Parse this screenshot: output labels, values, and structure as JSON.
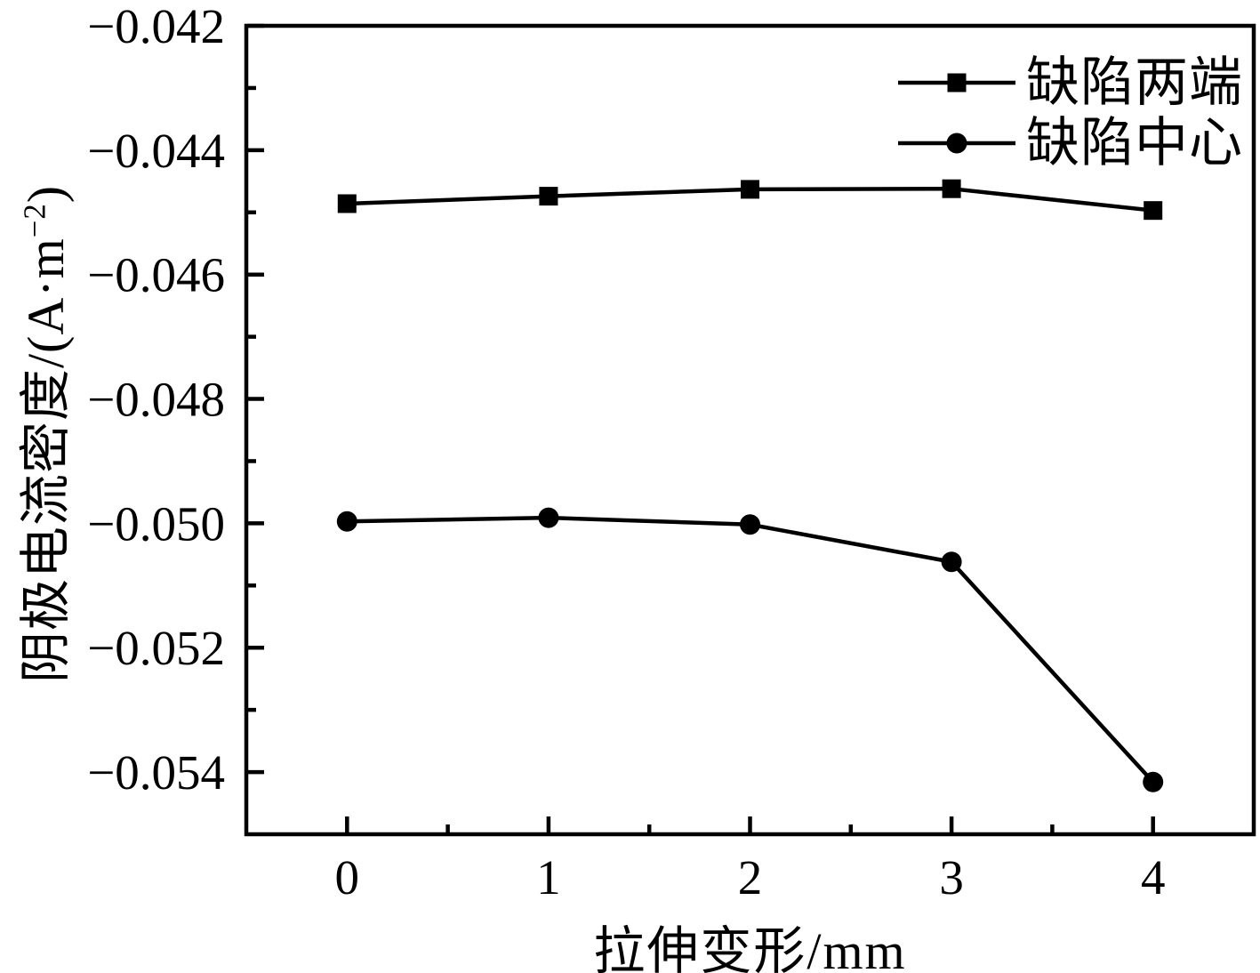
{
  "figure": {
    "background_color": "#ffffff",
    "ink_color": "#000000"
  },
  "chart_data": {
    "type": "line",
    "title": "",
    "xlabel": "拉伸变形/mm",
    "ylabel": "阴极电流密度/(A·m−2)",
    "ylabel_parts": {
      "pre": "阴极电流密度/(A·m",
      "sup": "−2",
      "post": ")"
    },
    "x": [
      0,
      1,
      2,
      3,
      4
    ],
    "series": [
      {
        "name": "缺陷两端",
        "marker": "square",
        "color": "#000000",
        "values": [
          -0.04486,
          -0.04474,
          -0.04463,
          -0.04462,
          -0.04497
        ]
      },
      {
        "name": "缺陷中心",
        "marker": "circle",
        "color": "#000000",
        "values": [
          -0.04997,
          -0.04991,
          -0.05002,
          -0.05062,
          -0.05416
        ]
      }
    ],
    "xlim": [
      -0.5,
      4.5
    ],
    "ylim": [
      -0.055,
      -0.042
    ],
    "x_major_ticks": [
      0,
      1,
      2,
      3,
      4
    ],
    "x_tick_labels": [
      "0",
      "1",
      "2",
      "3",
      "4"
    ],
    "x_minor_ticks": [
      0.5,
      1.5,
      2.5,
      3.5
    ],
    "y_major_ticks": [
      -0.042,
      -0.044,
      -0.046,
      -0.048,
      -0.05,
      -0.052,
      -0.054
    ],
    "y_tick_labels": [
      "−0.042",
      "−0.044",
      "−0.046",
      "−0.048",
      "−0.050",
      "−0.052",
      "−0.054"
    ],
    "y_minor_ticks": [
      -0.043,
      -0.045,
      -0.047,
      -0.049,
      -0.051,
      -0.053
    ],
    "grid": false,
    "legend_position": "top-right",
    "legend_frame": false
  },
  "legend": {
    "items": [
      {
        "label": "缺陷两端",
        "marker": "square-marker-icon"
      },
      {
        "label": "缺陷中心",
        "marker": "circle-marker-icon"
      }
    ]
  }
}
